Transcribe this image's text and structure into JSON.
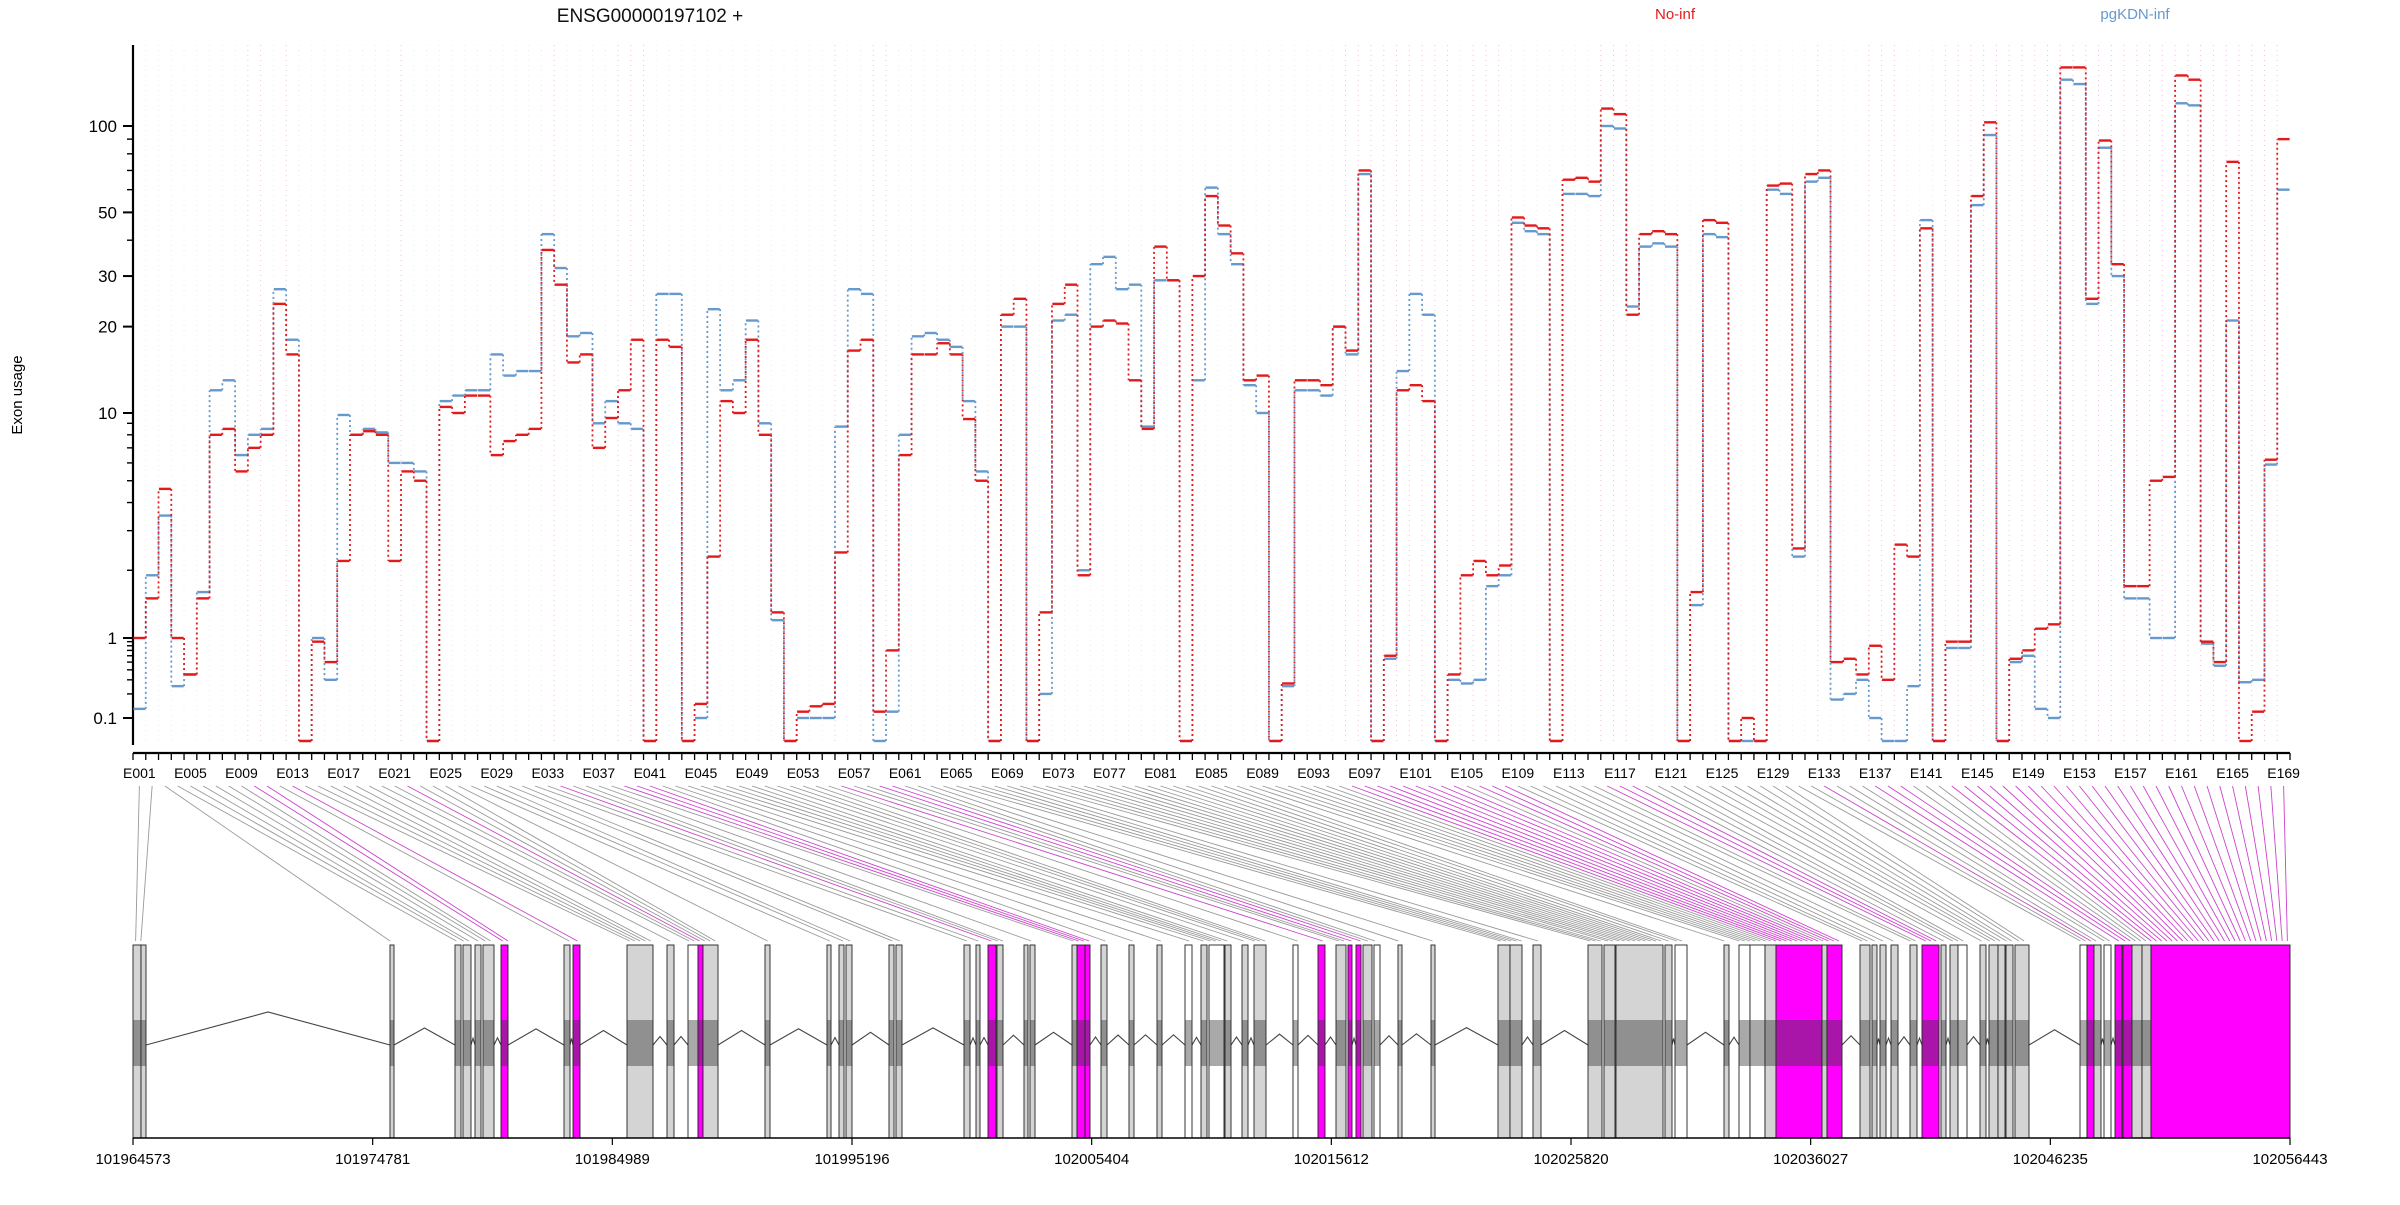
{
  "title": "ENSG00000197102 +",
  "legend": {
    "no_inf": {
      "label": "No-inf",
      "color": "#e31a1c"
    },
    "pgkdn": {
      "label": "pgKDN-inf",
      "color": "#6699cc"
    }
  },
  "y_axis": {
    "label": "Exon usage",
    "major_ticks": [
      "100",
      "50",
      "30",
      "20",
      "10",
      "1",
      "0.1"
    ],
    "major_values": [
      100,
      50,
      30,
      20,
      10,
      1,
      0.1
    ],
    "minor_values": [
      0.2,
      0.3,
      0.4,
      0.5,
      0.6,
      0.7,
      0.8,
      0.9,
      2,
      3,
      4,
      5,
      6,
      7,
      8,
      9,
      40,
      60,
      70,
      80,
      90
    ]
  },
  "exon_axis": {
    "labels": [
      "E001",
      "E005",
      "E009",
      "E013",
      "E017",
      "E021",
      "E025",
      "E029",
      "E033",
      "E037",
      "E041",
      "E045",
      "E049",
      "E053",
      "E057",
      "E061",
      "E065",
      "E069",
      "E073",
      "E077",
      "E081",
      "E085",
      "E089",
      "E093",
      "E097",
      "E101",
      "E105",
      "E109",
      "E113",
      "E117",
      "E121",
      "E125",
      "E129",
      "E133",
      "E137",
      "E141",
      "E145",
      "E149",
      "E153",
      "E157",
      "E161",
      "E165",
      "E169"
    ],
    "label_step": 4
  },
  "genome_axis": {
    "labels": [
      "101964573",
      "101974781",
      "101984989",
      "101995196",
      "102005404",
      "102015612",
      "102025820",
      "102036027",
      "102046235",
      "102056443"
    ]
  },
  "chart_data": {
    "type": "line",
    "step": true,
    "y_scale": "log-like (compressed below 10)",
    "n_exons": 169,
    "ylim": [
      0.08,
      200
    ],
    "grid": "vertical exon guides",
    "legend_position": "top-right",
    "series": [
      {
        "name": "No-inf",
        "color": "#e31a1c",
        "values": [
          1.0,
          1.5,
          4.6,
          1.0,
          0.35,
          1.5,
          8,
          8.5,
          5.5,
          7,
          8,
          24,
          16,
          0.08,
          0.9,
          0.5,
          2.2,
          8,
          8.3,
          8,
          2.2,
          5.5,
          5,
          0.08,
          10.5,
          10,
          11.5,
          11.5,
          6.5,
          7.5,
          8,
          8.5,
          37,
          28,
          15,
          16,
          7,
          9.5,
          12,
          18,
          0.08,
          18,
          17,
          0.08,
          0.15,
          2.3,
          11,
          10,
          18,
          8,
          1.3,
          0.08,
          0.12,
          0.14,
          0.15,
          2.4,
          16.5,
          18,
          0.12,
          0.7,
          6.5,
          16,
          16,
          17.5,
          16,
          9.4,
          5,
          0.08,
          22,
          25,
          0.08,
          1.3,
          24,
          28,
          1.9,
          20,
          21,
          20.5,
          13,
          8.5,
          38,
          29,
          0.08,
          30,
          57,
          45,
          36,
          13,
          13.5,
          0.08,
          0.27,
          13,
          13,
          12.5,
          20,
          16.5,
          70,
          0.08,
          0.6,
          12,
          12.5,
          11,
          0.08,
          0.35,
          1.9,
          2.2,
          1.9,
          2.1,
          48,
          45,
          44,
          0.08,
          65,
          66,
          64,
          115,
          110,
          22,
          42,
          43,
          42,
          0.08,
          1.6,
          47,
          46,
          0.08,
          0.1,
          0.08,
          62,
          63,
          2.5,
          68,
          70,
          0.5,
          0.55,
          0.35,
          0.8,
          0.3,
          2.6,
          2.3,
          44,
          0.08,
          0.9,
          0.9,
          57,
          103,
          0.08,
          0.55,
          0.7,
          1.1,
          1.15,
          160,
          160,
          25,
          89,
          33,
          1.7,
          1.7,
          5,
          5.2,
          150,
          145,
          0.9,
          0.5,
          75,
          0.08,
          0.12,
          6.2,
          90
        ]
      },
      {
        "name": "pgKDN-inf",
        "color": "#6699cc",
        "values": [
          0.13,
          1.9,
          3.5,
          0.25,
          0.35,
          1.6,
          12,
          13,
          6.5,
          8,
          8.5,
          27,
          18,
          0.08,
          1.0,
          0.3,
          9.8,
          8,
          8.5,
          8.2,
          6,
          6,
          5.5,
          0.08,
          11,
          11.5,
          12,
          12,
          16,
          13.5,
          14,
          14,
          42,
          32,
          18.5,
          19,
          9,
          11,
          9,
          8.5,
          0.08,
          26,
          26,
          0.08,
          0.1,
          23,
          12,
          13,
          21,
          9,
          1.2,
          0.08,
          0.1,
          0.1,
          0.1,
          8.7,
          27,
          26,
          0.08,
          0.12,
          8,
          18.5,
          19,
          18,
          17,
          11,
          5.5,
          0.08,
          20,
          20,
          0.08,
          0.2,
          21,
          22,
          2.0,
          33,
          35,
          27,
          28,
          8.7,
          29,
          29,
          0.08,
          13,
          61,
          42,
          33,
          12.5,
          10,
          0.08,
          0.25,
          12,
          12,
          11.5,
          20,
          16,
          68,
          0.08,
          0.55,
          14,
          26,
          22,
          0.08,
          0.3,
          0.27,
          0.3,
          1.7,
          1.9,
          46,
          43,
          42,
          0.08,
          58,
          58,
          57,
          100,
          98,
          23.5,
          38,
          39,
          38,
          0.08,
          1.4,
          42,
          41,
          0.08,
          0.08,
          0.08,
          60,
          58,
          2.3,
          64,
          66,
          0.17,
          0.2,
          0.3,
          0.1,
          0.08,
          0.08,
          0.25,
          47,
          0.08,
          0.75,
          0.75,
          53,
          93,
          0.08,
          0.5,
          0.6,
          0.13,
          0.1,
          145,
          140,
          24,
          84,
          30,
          1.5,
          1.5,
          1,
          1.0,
          120,
          118,
          0.85,
          0.45,
          21,
          0.28,
          0.3,
          5.9,
          60
        ]
      }
    ]
  },
  "gene_model": {
    "colors": {
      "g": "#d4d4d4",
      "w": "#ffffff",
      "m": "#ff00ff",
      "stroke": "#222222",
      "intron": "#444444",
      "connector_gray": "#999999",
      "connector_sig": "#cc44cc",
      "guide": "#ececec",
      "guide_sig": "#f4bcea"
    },
    "boxes": [
      [
        133,
        8,
        "g"
      ],
      [
        141,
        5,
        "g"
      ],
      [
        390,
        4,
        "g"
      ],
      [
        455,
        6,
        "g"
      ],
      [
        463,
        8,
        "g"
      ],
      [
        475,
        6,
        "g"
      ],
      [
        483,
        11,
        "g"
      ],
      [
        501,
        7,
        "m"
      ],
      [
        564,
        6,
        "g"
      ],
      [
        573,
        7,
        "m"
      ],
      [
        627,
        26,
        "g"
      ],
      [
        667,
        7,
        "g"
      ],
      [
        688,
        10,
        "w"
      ],
      [
        698,
        5,
        "m"
      ],
      [
        703,
        15,
        "g"
      ],
      [
        765,
        5,
        "g"
      ],
      [
        827,
        4,
        "g"
      ],
      [
        839,
        5,
        "g"
      ],
      [
        846,
        6,
        "g"
      ],
      [
        889,
        5,
        "g"
      ],
      [
        896,
        6,
        "g"
      ],
      [
        964,
        6,
        "g"
      ],
      [
        976,
        4,
        "g"
      ],
      [
        988,
        8,
        "m"
      ],
      [
        997,
        6,
        "g"
      ],
      [
        1024,
        4,
        "g"
      ],
      [
        1030,
        5,
        "g"
      ],
      [
        1072,
        5,
        "g"
      ],
      [
        1077,
        8,
        "m"
      ],
      [
        1085,
        5,
        "m"
      ],
      [
        1101,
        6,
        "g"
      ],
      [
        1129,
        5,
        "g"
      ],
      [
        1157,
        5,
        "g"
      ],
      [
        1185,
        7,
        "w"
      ],
      [
        1201,
        6,
        "g"
      ],
      [
        1209,
        15,
        "w"
      ],
      [
        1225,
        6,
        "g"
      ],
      [
        1242,
        6,
        "g"
      ],
      [
        1254,
        12,
        "g"
      ],
      [
        1293,
        5,
        "w"
      ],
      [
        1318,
        7,
        "m"
      ],
      [
        1336,
        10,
        "g"
      ],
      [
        1348,
        4,
        "m"
      ],
      [
        1356,
        5,
        "m"
      ],
      [
        1363,
        9,
        "g"
      ],
      [
        1374,
        6,
        "w"
      ],
      [
        1398,
        4,
        "g"
      ],
      [
        1431,
        4,
        "g"
      ],
      [
        1498,
        12,
        "g"
      ],
      [
        1510,
        12,
        "g"
      ],
      [
        1533,
        8,
        "g"
      ],
      [
        1588,
        14,
        "g"
      ],
      [
        1604,
        11,
        "g"
      ],
      [
        1616,
        47,
        "g"
      ],
      [
        1665,
        7,
        "g"
      ],
      [
        1675,
        12,
        "w"
      ],
      [
        1724,
        5,
        "g"
      ],
      [
        1739,
        11,
        "w"
      ],
      [
        1750,
        15,
        "w"
      ],
      [
        1765,
        11,
        "g"
      ],
      [
        1776,
        46,
        "m"
      ],
      [
        1822,
        5,
        "g"
      ],
      [
        1827,
        15,
        "m"
      ],
      [
        1860,
        10,
        "g"
      ],
      [
        1872,
        5,
        "g"
      ],
      [
        1880,
        6,
        "g"
      ],
      [
        1891,
        7,
        "g"
      ],
      [
        1910,
        7,
        "g"
      ],
      [
        1922,
        17,
        "m"
      ],
      [
        1941,
        5,
        "g"
      ],
      [
        1950,
        8,
        "g"
      ],
      [
        1958,
        9,
        "w"
      ],
      [
        1980,
        6,
        "g"
      ],
      [
        1989,
        9,
        "g"
      ],
      [
        1998,
        7,
        "g"
      ],
      [
        2006,
        7,
        "g"
      ],
      [
        2015,
        14,
        "g"
      ],
      [
        2080,
        7,
        "w"
      ],
      [
        2087,
        7,
        "m"
      ],
      [
        2094,
        7,
        "g"
      ],
      [
        2104,
        7,
        "w"
      ],
      [
        2115,
        7,
        "m"
      ],
      [
        2123,
        9,
        "m"
      ],
      [
        2132,
        10,
        "g"
      ],
      [
        2142,
        9,
        "g"
      ],
      [
        2151,
        139,
        "m"
      ]
    ]
  }
}
